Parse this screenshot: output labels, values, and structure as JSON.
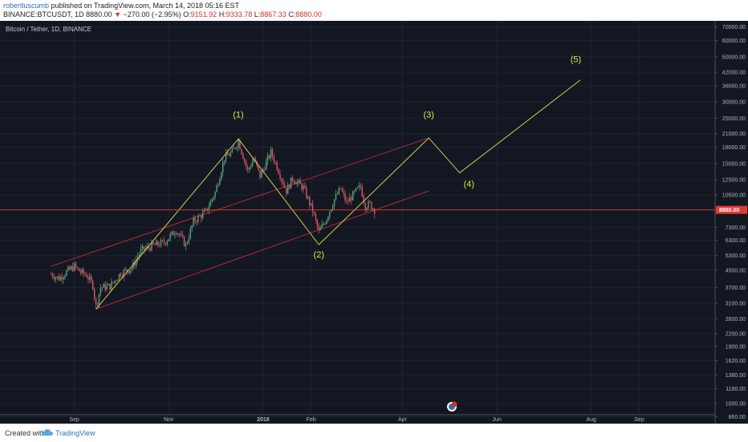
{
  "header": {
    "user": "robertluscumb",
    "published": "published on TradingView.com, March 14, 2018 05:16 EST",
    "symbol": "BINANCE:BTCUSDT, 1D",
    "last": "8880.00",
    "change_arrow": "▼",
    "change": "−270.00 (−2.95%)",
    "o_label": "O:",
    "o": "9151.92",
    "h_label": "H:",
    "h": "9333.78",
    "l_label": "L:",
    "l": "8867.33",
    "c_label": "C:",
    "c": "8880.00"
  },
  "chart_title": "Bitcoin / Tether, 1D, BINANCE",
  "footer": {
    "created_with": "Created with",
    "brand": "TradingView"
  },
  "colors": {
    "bg": "#131722",
    "up": "#5cab7d",
    "down": "#e0566a",
    "wave": "#e6e34e",
    "channel": "#c8283c",
    "price_tag": "#e53935"
  },
  "chart_data": {
    "type": "candlestick",
    "title": "Bitcoin / Tether, 1D, BINANCE",
    "scale": "log",
    "ylim": [
      880,
      75000
    ],
    "y_ticks": [
      70000,
      60000,
      50000,
      42000,
      36000,
      30000,
      25000,
      21000,
      18000,
      15000,
      12500,
      10500,
      8880,
      7300,
      6300,
      5300,
      4500,
      3700,
      3100,
      2600,
      2200,
      1900,
      1620,
      1380,
      1180,
      1000,
      860
    ],
    "y_tick_labels": [
      "70000.00",
      "60000.00",
      "50000.00",
      "42000.00",
      "36000.00",
      "30000.00",
      "25000.00",
      "21000.00",
      "18000.00",
      "15000.00",
      "12500.00",
      "10500.00",
      "8880.00",
      "7300.00",
      "6300.00",
      "5300.00",
      "4500.00",
      "3700.00",
      "3100.00",
      "2600.00",
      "2200.00",
      "1900.00",
      "1620.00",
      "1380.00",
      "1180.00",
      "1000.00",
      "860.00"
    ],
    "x_ticks": [
      {
        "label": "Sep",
        "date": "2017-09-01"
      },
      {
        "label": "Nov",
        "date": "2017-11-01"
      },
      {
        "label": "2018",
        "date": "2018-01-01"
      },
      {
        "label": "Feb",
        "date": "2018-02-01"
      },
      {
        "label": "Apr",
        "date": "2018-04-01"
      },
      {
        "label": "Jun",
        "date": "2018-06-01"
      },
      {
        "label": "Aug",
        "date": "2018-08-01"
      },
      {
        "label": "Sep",
        "date": "2018-09-01"
      }
    ],
    "xlim": [
      "2017-07-15",
      "2018-10-20"
    ],
    "last_price": 8880,
    "candle_path": [
      [
        "2017-08-17",
        4300
      ],
      [
        "2017-08-22",
        4100
      ],
      [
        "2017-08-26",
        4350
      ],
      [
        "2017-09-01",
        4700
      ],
      [
        "2017-09-05",
        4400
      ],
      [
        "2017-09-09",
        4250
      ],
      [
        "2017-09-13",
        3800
      ],
      [
        "2017-09-15",
        3000
      ],
      [
        "2017-09-18",
        3700
      ],
      [
        "2017-09-24",
        3750
      ],
      [
        "2017-10-01",
        4350
      ],
      [
        "2017-10-08",
        4600
      ],
      [
        "2017-10-14",
        5600
      ],
      [
        "2017-10-21",
        5900
      ],
      [
        "2017-10-29",
        6150
      ],
      [
        "2017-11-06",
        7100
      ],
      [
        "2017-11-12",
        5950
      ],
      [
        "2017-11-17",
        7800
      ],
      [
        "2017-11-25",
        8700
      ],
      [
        "2017-12-01",
        10800
      ],
      [
        "2017-12-07",
        16000
      ],
      [
        "2017-12-12",
        17000
      ],
      [
        "2017-12-16",
        19400
      ],
      [
        "2017-12-22",
        13800
      ],
      [
        "2017-12-26",
        15800
      ],
      [
        "2017-12-30",
        13000
      ],
      [
        "2018-01-06",
        17000
      ],
      [
        "2018-01-10",
        14500
      ],
      [
        "2018-01-16",
        11000
      ],
      [
        "2018-01-20",
        12700
      ],
      [
        "2018-01-27",
        11400
      ],
      [
        "2018-02-02",
        8800
      ],
      [
        "2018-02-06",
        6900
      ],
      [
        "2018-02-11",
        8100
      ],
      [
        "2018-02-16",
        10000
      ],
      [
        "2018-02-20",
        11300
      ],
      [
        "2018-02-24",
        9600
      ],
      [
        "2018-03-03",
        11200
      ],
      [
        "2018-03-05",
        11500
      ],
      [
        "2018-03-08",
        9300
      ],
      [
        "2018-03-11",
        9500
      ],
      [
        "2018-03-14",
        8880
      ]
    ],
    "wave_labels": [
      {
        "label": "(1)",
        "date": "2017-12-16",
        "price": 25200
      },
      {
        "label": "(2)",
        "date": "2018-02-06",
        "price": 5200
      },
      {
        "label": "(3)",
        "date": "2018-04-18",
        "price": 25200
      },
      {
        "label": "(4)",
        "date": "2018-05-14",
        "price": 11500
      },
      {
        "label": "(5)",
        "date": "2018-07-22",
        "price": 47000
      }
    ],
    "wave_path": [
      [
        "2017-09-15",
        2900
      ],
      [
        "2017-12-16",
        19800
      ],
      [
        "2018-02-06",
        6000
      ],
      [
        "2018-04-18",
        20000
      ],
      [
        "2018-05-08",
        13500
      ],
      [
        "2018-07-25",
        38500
      ]
    ],
    "channel_lines": [
      [
        [
          "2017-08-17",
          4700
        ],
        [
          "2018-04-18",
          20000
        ]
      ],
      [
        [
          "2017-09-15",
          2900
        ],
        [
          "2018-04-18",
          11000
        ]
      ]
    ]
  }
}
